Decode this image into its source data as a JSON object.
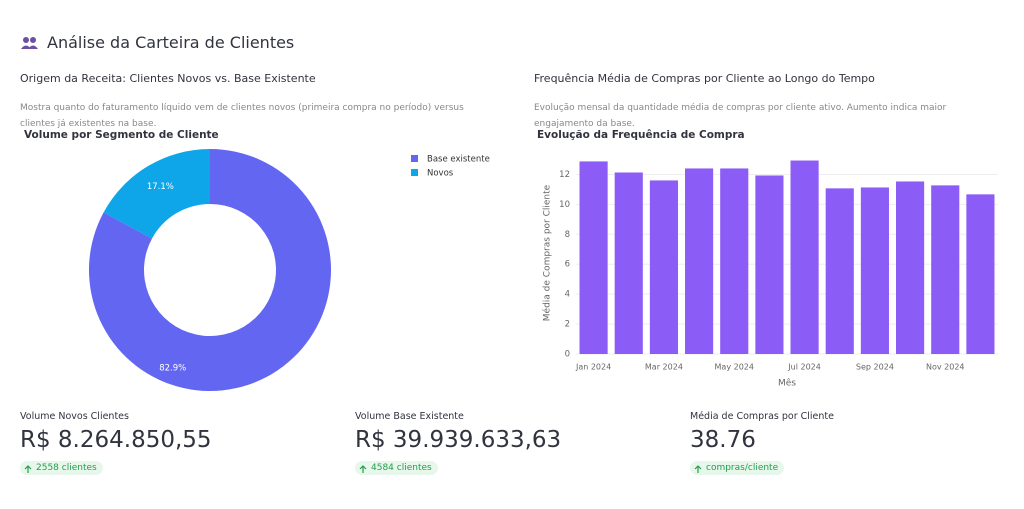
{
  "header": {
    "title": "Análise da Carteira de Clientes"
  },
  "sections": [
    {
      "title": "Origem da Receita: Clientes Novos vs. Base Existente",
      "description": "Mostra quanto do faturamento líquido vem de clientes novos (primeira compra no período) versus clientes já existentes na base."
    },
    {
      "title": "Frequência Média de Compras por Cliente ao Longo do Tempo",
      "description": "Evolução mensal da quantidade média de compras por cliente ativo. Aumento indica maior engajamento da base."
    }
  ],
  "chart_data": [
    {
      "type": "pie",
      "title": "Volume por Segmento de Cliente",
      "categories": [
        "Base existente",
        "Novos"
      ],
      "values": [
        82.9,
        17.1
      ],
      "value_labels": [
        "82.9%",
        "17.1%"
      ],
      "colors": [
        "#6366f1",
        "#0ea5e9"
      ],
      "legend": "top-right"
    },
    {
      "type": "bar",
      "title": "Evolução da Frequência de Compra",
      "x_label": "Mês",
      "y_label": "Média de Compras por Cliente",
      "categories": [
        "Jan 2024",
        null,
        "Mar 2024",
        null,
        "May 2024",
        null,
        "Jul 2024",
        null,
        "Sep 2024",
        null,
        "Nov 2024",
        null
      ],
      "values": [
        12.87,
        12.13,
        11.6,
        12.4,
        12.4,
        11.93,
        12.93,
        11.07,
        11.13,
        11.53,
        11.27,
        10.67
      ],
      "color": "#8b5cf6",
      "ylim": [
        0,
        13.5
      ],
      "yticks": [
        0,
        2,
        4,
        6,
        8,
        10,
        12
      ],
      "grid": true
    }
  ],
  "metrics": [
    {
      "label": "Volume Novos Clientes",
      "value": "R$ 8.264.850,55",
      "delta": "2558 clientes"
    },
    {
      "label": "Volume Base Existente",
      "value": "R$ 39.939.633,63",
      "delta": "4584 clientes"
    },
    {
      "label": "Média de Compras por Cliente",
      "value": "38.76",
      "delta": "compras/cliente"
    }
  ]
}
